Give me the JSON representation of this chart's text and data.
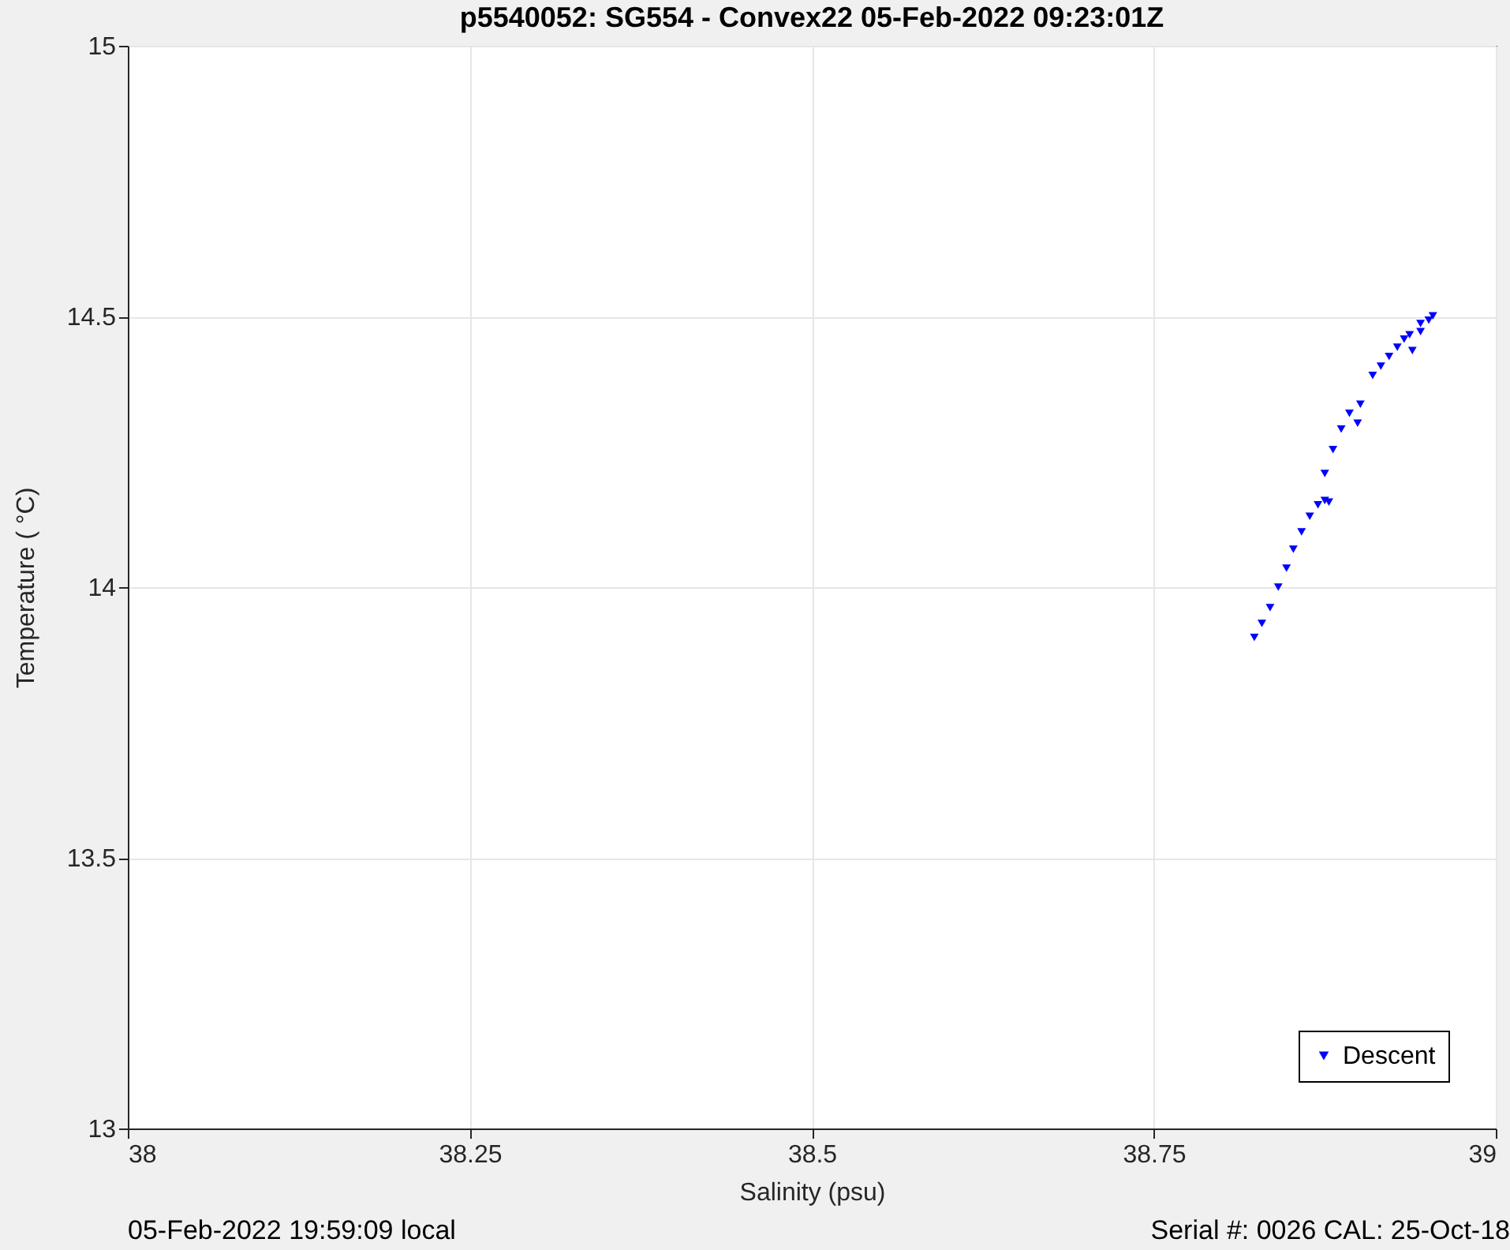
{
  "chart_data": {
    "type": "scatter",
    "title": "p5540052: SG554 - Convex22 05-Feb-2022 09:23:01Z",
    "xlabel": "Salinity (psu)",
    "ylabel": "Temperature (   °C)",
    "annotations": [
      "05-Feb-2022 19:59:09 local",
      "Serial #: 0026 CAL: 25-Oct-18"
    ],
    "xlim": [
      38,
      39
    ],
    "xticks": [
      38,
      38.25,
      38.5,
      38.75,
      39
    ],
    "ylim": [
      13,
      15
    ],
    "yticks": [
      13,
      13.5,
      14,
      14.5,
      15
    ],
    "grid": true,
    "legend": "bottom right",
    "marker": "triangle",
    "series": [
      {
        "name": "Descent",
        "color": "#0000ff",
        "x": [
          38.8235,
          38.829,
          38.835,
          38.841,
          38.847,
          38.852,
          38.858,
          38.864,
          38.87,
          38.875,
          38.878,
          38.875,
          38.881,
          38.887,
          38.893,
          38.899,
          38.901,
          38.91,
          38.916,
          38.922,
          38.928,
          38.933,
          38.939,
          38.945,
          38.951,
          38.954,
          38.945,
          38.937
        ],
        "values": [
          13.907,
          13.933,
          13.962,
          14.0,
          14.035,
          14.07,
          14.102,
          14.131,
          14.152,
          14.16,
          14.157,
          14.21,
          14.254,
          14.292,
          14.321,
          14.303,
          14.338,
          14.391,
          14.408,
          14.426,
          14.443,
          14.458,
          14.437,
          14.472,
          14.493,
          14.501,
          14.487,
          14.466
        ]
      }
    ]
  }
}
